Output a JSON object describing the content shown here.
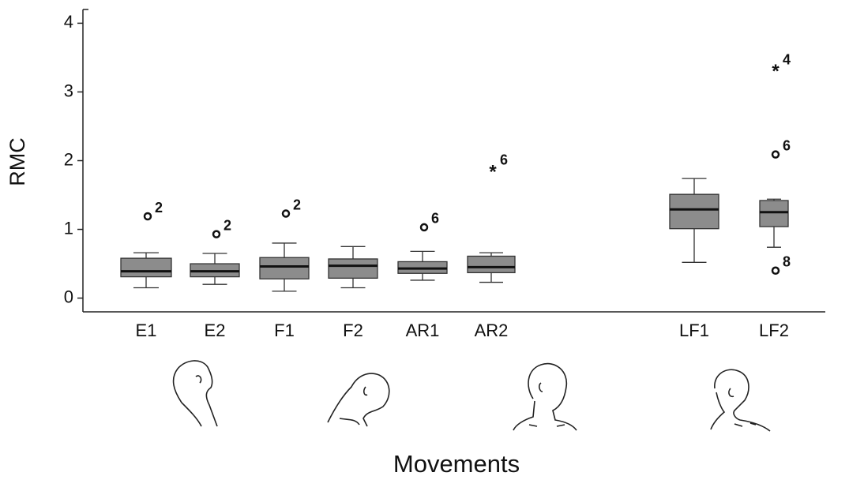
{
  "chart_data": {
    "type": "box",
    "x_label": "Movements",
    "y_label": "RMC",
    "categories": [
      "E1",
      "E2",
      "F1",
      "F2",
      "AR1",
      "AR2",
      "LF1",
      "LF2"
    ],
    "color": "#8c8c8c",
    "ylim": [
      -0.2,
      4.2
    ],
    "yticks": [
      0,
      1,
      2,
      3,
      4
    ],
    "boxes": [
      {
        "whisker_low": 0.15,
        "q1": 0.31,
        "median": 0.39,
        "q3": 0.58,
        "whisker_high": 0.66,
        "outliers": [
          {
            "value": 1.19,
            "label": "2",
            "marker": "circle"
          }
        ]
      },
      {
        "whisker_low": 0.2,
        "q1": 0.31,
        "median": 0.39,
        "q3": 0.5,
        "whisker_high": 0.65,
        "outliers": [
          {
            "value": 0.93,
            "label": "2",
            "marker": "circle"
          }
        ]
      },
      {
        "whisker_low": 0.1,
        "q1": 0.28,
        "median": 0.46,
        "q3": 0.59,
        "whisker_high": 0.8,
        "outliers": [
          {
            "value": 1.23,
            "label": "2",
            "marker": "circle"
          }
        ]
      },
      {
        "whisker_low": 0.15,
        "q1": 0.29,
        "median": 0.47,
        "q3": 0.57,
        "whisker_high": 0.75,
        "outliers": []
      },
      {
        "whisker_low": 0.26,
        "q1": 0.36,
        "median": 0.43,
        "q3": 0.53,
        "whisker_high": 0.68,
        "outliers": [
          {
            "value": 1.03,
            "label": "6",
            "marker": "circle"
          }
        ]
      },
      {
        "whisker_low": 0.23,
        "q1": 0.37,
        "median": 0.45,
        "q3": 0.61,
        "whisker_high": 0.66,
        "outliers": [
          {
            "value": 1.88,
            "label": "6",
            "marker": "star"
          }
        ]
      },
      {
        "whisker_low": 0.52,
        "q1": 1.01,
        "median": 1.29,
        "q3": 1.51,
        "whisker_high": 1.74,
        "outliers": []
      },
      {
        "whisker_low": 0.74,
        "q1": 1.04,
        "median": 1.25,
        "q3": 1.42,
        "whisker_high": 1.44,
        "outliers": [
          {
            "value": 3.34,
            "label": "4",
            "marker": "star"
          },
          {
            "value": 2.09,
            "label": "6",
            "marker": "circle"
          },
          {
            "value": 0.4,
            "label": "8",
            "marker": "circle"
          }
        ]
      }
    ]
  }
}
